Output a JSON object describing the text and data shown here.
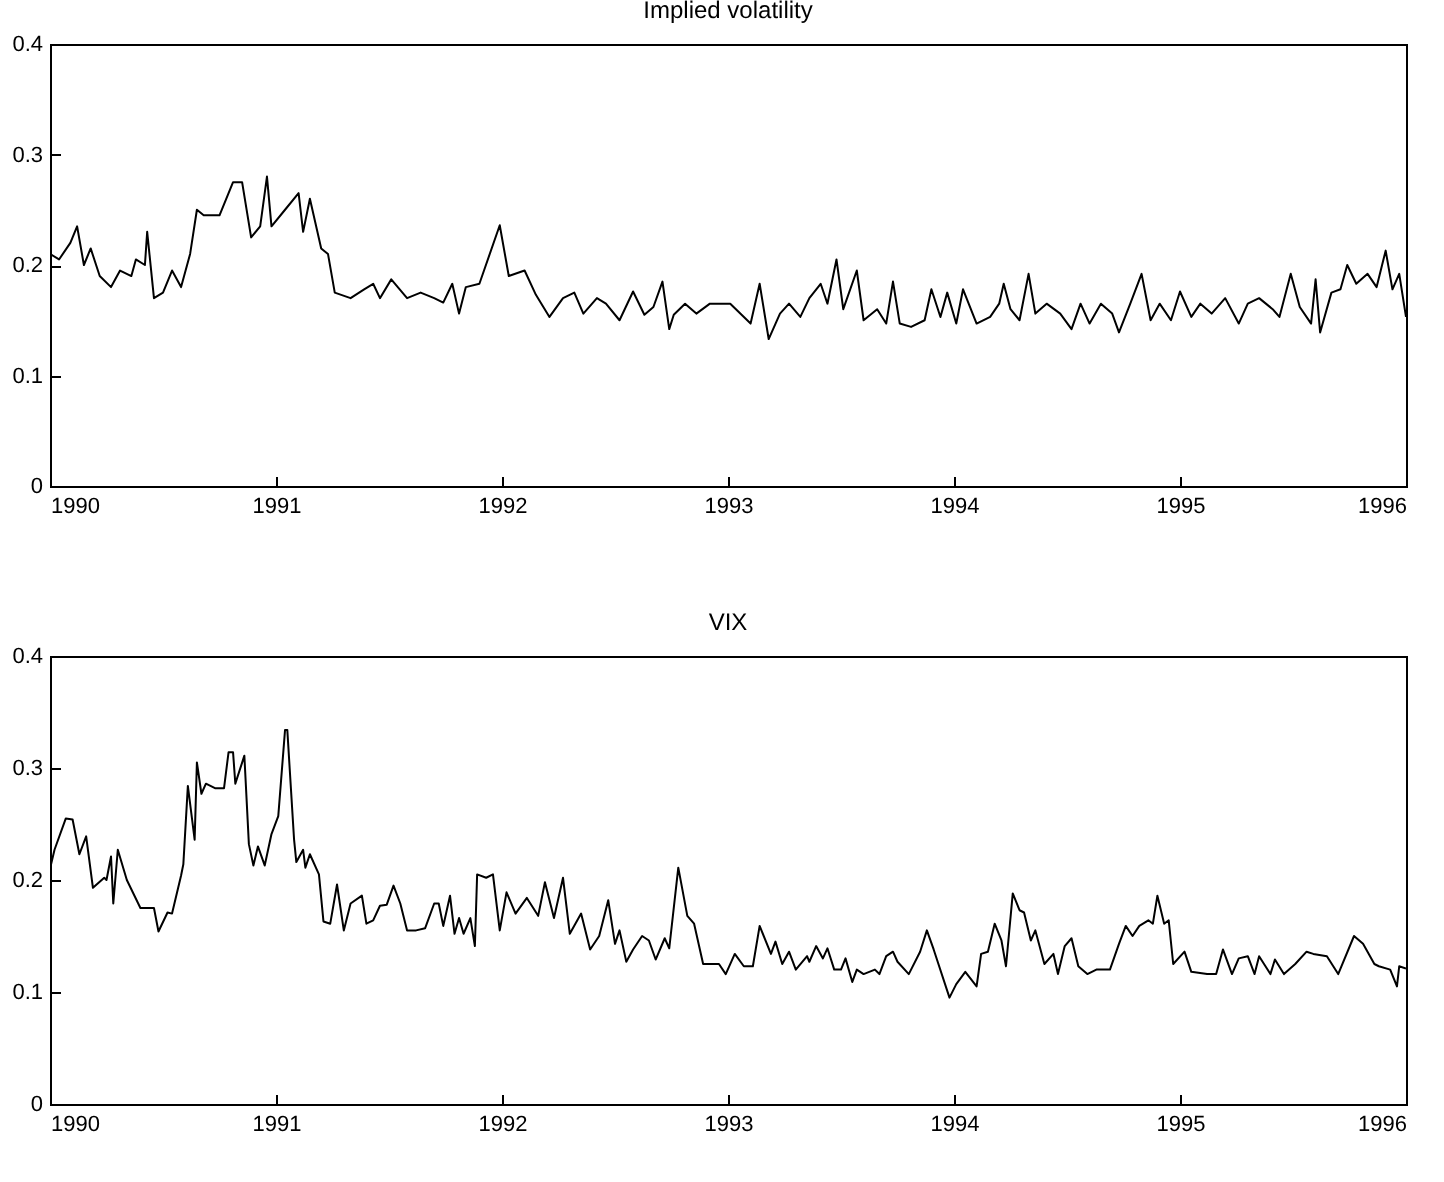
{
  "chart_data": [
    {
      "type": "line",
      "title": "Implied volatility",
      "xlim": [
        1990,
        1996
      ],
      "xticks": [
        1990,
        1991,
        1992,
        1993,
        1994,
        1995,
        1996
      ],
      "ylim": [
        0,
        0.4
      ],
      "yticks": [
        0,
        0.1,
        0.2,
        0.3,
        0.4
      ],
      "grid": false,
      "series": [
        {
          "color": "#000000",
          "x": [
            1990.0,
            1990.04,
            1990.09,
            1990.12,
            1990.15,
            1990.18,
            1990.22,
            1990.27,
            1990.31,
            1990.36,
            1990.38,
            1990.42,
            1990.43,
            1990.46,
            1990.5,
            1990.54,
            1990.58,
            1990.62,
            1990.65,
            1990.68,
            1990.75,
            1990.81,
            1990.85,
            1990.89,
            1990.93,
            1990.96,
            1990.98,
            1991.04,
            1991.1,
            1991.12,
            1991.15,
            1991.2,
            1991.23,
            1991.26,
            1991.33,
            1991.39,
            1991.43,
            1991.46,
            1991.51,
            1991.58,
            1991.64,
            1991.7,
            1991.74,
            1991.78,
            1991.81,
            1991.84,
            1991.9,
            1991.99,
            1992.03,
            1992.1,
            1992.15,
            1992.21,
            1992.27,
            1992.32,
            1992.36,
            1992.42,
            1992.46,
            1992.52,
            1992.58,
            1992.63,
            1992.67,
            1992.71,
            1992.74,
            1992.76,
            1992.81,
            1992.86,
            1992.92,
            1993.01,
            1993.1,
            1993.14,
            1993.18,
            1993.23,
            1993.27,
            1993.32,
            1993.36,
            1993.41,
            1993.44,
            1993.48,
            1993.51,
            1993.57,
            1993.6,
            1993.66,
            1993.7,
            1993.73,
            1993.76,
            1993.81,
            1993.87,
            1993.9,
            1993.94,
            1993.97,
            1994.01,
            1994.04,
            1994.1,
            1994.16,
            1994.2,
            1994.22,
            1994.25,
            1994.29,
            1994.33,
            1994.36,
            1994.41,
            1994.47,
            1994.52,
            1994.56,
            1994.6,
            1994.65,
            1994.7,
            1994.73,
            1994.78,
            1994.83,
            1994.87,
            1994.91,
            1994.96,
            1995.0,
            1995.05,
            1995.09,
            1995.14,
            1995.2,
            1995.26,
            1995.3,
            1995.35,
            1995.41,
            1995.44,
            1995.49,
            1995.53,
            1995.58,
            1995.6,
            1995.62,
            1995.67,
            1995.71,
            1995.74,
            1995.78,
            1995.83,
            1995.87,
            1995.91,
            1995.94,
            1995.97,
            1996.0
          ],
          "values": [
            0.21,
            0.205,
            0.22,
            0.235,
            0.2,
            0.215,
            0.19,
            0.18,
            0.195,
            0.19,
            0.205,
            0.2,
            0.23,
            0.17,
            0.175,
            0.195,
            0.18,
            0.21,
            0.25,
            0.245,
            0.245,
            0.275,
            0.275,
            0.225,
            0.235,
            0.28,
            0.235,
            0.25,
            0.265,
            0.23,
            0.26,
            0.215,
            0.21,
            0.175,
            0.17,
            0.178,
            0.183,
            0.17,
            0.187,
            0.17,
            0.175,
            0.17,
            0.166,
            0.183,
            0.156,
            0.18,
            0.183,
            0.236,
            0.19,
            0.195,
            0.173,
            0.153,
            0.17,
            0.175,
            0.156,
            0.17,
            0.165,
            0.15,
            0.176,
            0.155,
            0.162,
            0.185,
            0.142,
            0.155,
            0.165,
            0.156,
            0.165,
            0.165,
            0.147,
            0.183,
            0.133,
            0.156,
            0.165,
            0.153,
            0.17,
            0.183,
            0.165,
            0.205,
            0.16,
            0.195,
            0.15,
            0.16,
            0.147,
            0.185,
            0.147,
            0.144,
            0.15,
            0.178,
            0.153,
            0.175,
            0.147,
            0.178,
            0.147,
            0.153,
            0.165,
            0.183,
            0.16,
            0.15,
            0.192,
            0.156,
            0.165,
            0.156,
            0.142,
            0.165,
            0.147,
            0.165,
            0.156,
            0.139,
            0.165,
            0.192,
            0.15,
            0.165,
            0.15,
            0.176,
            0.153,
            0.165,
            0.156,
            0.17,
            0.147,
            0.165,
            0.17,
            0.16,
            0.153,
            0.192,
            0.162,
            0.147,
            0.187,
            0.139,
            0.175,
            0.178,
            0.2,
            0.183,
            0.192,
            0.18,
            0.213,
            0.178,
            0.192,
            0.153
          ]
        }
      ]
    },
    {
      "type": "line",
      "title": "VIX",
      "xlim": [
        1990,
        1996
      ],
      "xticks": [
        1990,
        1991,
        1992,
        1993,
        1994,
        1995,
        1996
      ],
      "ylim": [
        0,
        0.4
      ],
      "yticks": [
        0,
        0.1,
        0.2,
        0.3,
        0.4
      ],
      "grid": false,
      "series": [
        {
          "color": "#000000",
          "x": [
            1990.0,
            1990.02,
            1990.07,
            1990.1,
            1990.13,
            1990.16,
            1990.19,
            1990.24,
            1990.25,
            1990.27,
            1990.28,
            1990.3,
            1990.34,
            1990.4,
            1990.46,
            1990.48,
            1990.52,
            1990.54,
            1990.58,
            1990.59,
            1990.61,
            1990.64,
            1990.65,
            1990.67,
            1990.69,
            1990.73,
            1990.77,
            1990.79,
            1990.81,
            1990.82,
            1990.86,
            1990.88,
            1990.9,
            1990.92,
            1990.95,
            1990.98,
            1991.01,
            1991.04,
            1991.05,
            1991.08,
            1991.09,
            1991.12,
            1991.13,
            1991.15,
            1991.19,
            1991.21,
            1991.24,
            1991.27,
            1991.3,
            1991.33,
            1991.38,
            1991.4,
            1991.43,
            1991.46,
            1991.49,
            1991.52,
            1991.55,
            1991.58,
            1991.62,
            1991.66,
            1991.7,
            1991.72,
            1991.74,
            1991.77,
            1991.79,
            1991.81,
            1991.83,
            1991.86,
            1991.88,
            1991.89,
            1991.93,
            1991.96,
            1991.99,
            1992.02,
            1992.06,
            1992.11,
            1992.16,
            1992.19,
            1992.23,
            1992.27,
            1992.3,
            1992.35,
            1992.39,
            1992.43,
            1992.47,
            1992.5,
            1992.52,
            1992.55,
            1992.58,
            1992.62,
            1992.65,
            1992.68,
            1992.72,
            1992.74,
            1992.78,
            1992.82,
            1992.85,
            1992.89,
            1992.96,
            1992.99,
            1993.03,
            1993.07,
            1993.11,
            1993.14,
            1993.19,
            1993.21,
            1993.24,
            1993.27,
            1993.3,
            1993.35,
            1993.36,
            1993.39,
            1993.42,
            1993.44,
            1993.47,
            1993.5,
            1993.52,
            1993.55,
            1993.57,
            1993.6,
            1993.65,
            1993.67,
            1993.7,
            1993.73,
            1993.75,
            1993.8,
            1993.85,
            1993.88,
            1993.91,
            1993.98,
            1994.01,
            1994.05,
            1994.1,
            1994.12,
            1994.15,
            1994.18,
            1994.21,
            1994.23,
            1994.26,
            1994.29,
            1994.31,
            1994.34,
            1994.36,
            1994.4,
            1994.44,
            1994.46,
            1994.49,
            1994.52,
            1994.55,
            1994.59,
            1994.63,
            1994.69,
            1994.73,
            1994.76,
            1994.79,
            1994.82,
            1994.86,
            1994.88,
            1994.9,
            1994.93,
            1994.95,
            1994.97,
            1995.02,
            1995.05,
            1995.12,
            1995.16,
            1995.19,
            1995.23,
            1995.26,
            1995.3,
            1995.33,
            1995.35,
            1995.4,
            1995.42,
            1995.46,
            1995.51,
            1995.56,
            1995.59,
            1995.65,
            1995.7,
            1995.77,
            1995.81,
            1995.86,
            1995.88,
            1995.93,
            1995.96,
            1995.97,
            1996.0
          ],
          "values": [
            0.21,
            0.227,
            0.255,
            0.254,
            0.223,
            0.239,
            0.193,
            0.202,
            0.2,
            0.221,
            0.179,
            0.227,
            0.2,
            0.175,
            0.175,
            0.154,
            0.171,
            0.17,
            0.204,
            0.214,
            0.284,
            0.236,
            0.305,
            0.277,
            0.286,
            0.282,
            0.282,
            0.314,
            0.314,
            0.286,
            0.311,
            0.232,
            0.213,
            0.23,
            0.213,
            0.241,
            0.257,
            0.334,
            0.334,
            0.236,
            0.216,
            0.227,
            0.211,
            0.223,
            0.205,
            0.163,
            0.161,
            0.196,
            0.155,
            0.179,
            0.186,
            0.161,
            0.164,
            0.177,
            0.178,
            0.195,
            0.179,
            0.155,
            0.155,
            0.157,
            0.179,
            0.179,
            0.159,
            0.186,
            0.152,
            0.166,
            0.152,
            0.166,
            0.141,
            0.205,
            0.202,
            0.205,
            0.155,
            0.189,
            0.17,
            0.184,
            0.168,
            0.198,
            0.166,
            0.202,
            0.152,
            0.17,
            0.138,
            0.15,
            0.182,
            0.143,
            0.155,
            0.127,
            0.138,
            0.15,
            0.146,
            0.129,
            0.148,
            0.139,
            0.211,
            0.168,
            0.161,
            0.125,
            0.125,
            0.116,
            0.134,
            0.123,
            0.123,
            0.159,
            0.134,
            0.145,
            0.125,
            0.136,
            0.12,
            0.132,
            0.127,
            0.141,
            0.13,
            0.139,
            0.12,
            0.12,
            0.13,
            0.109,
            0.12,
            0.116,
            0.12,
            0.116,
            0.132,
            0.136,
            0.127,
            0.116,
            0.136,
            0.155,
            0.138,
            0.095,
            0.107,
            0.118,
            0.105,
            0.134,
            0.136,
            0.161,
            0.146,
            0.123,
            0.188,
            0.173,
            0.171,
            0.146,
            0.155,
            0.125,
            0.134,
            0.116,
            0.141,
            0.148,
            0.123,
            0.116,
            0.12,
            0.12,
            0.143,
            0.159,
            0.15,
            0.159,
            0.164,
            0.161,
            0.186,
            0.161,
            0.164,
            0.125,
            0.136,
            0.118,
            0.116,
            0.116,
            0.138,
            0.116,
            0.13,
            0.132,
            0.116,
            0.132,
            0.116,
            0.129,
            0.116,
            0.125,
            0.136,
            0.134,
            0.132,
            0.116,
            0.15,
            0.143,
            0.125,
            0.123,
            0.12,
            0.105,
            0.123,
            0.121
          ]
        }
      ]
    }
  ]
}
